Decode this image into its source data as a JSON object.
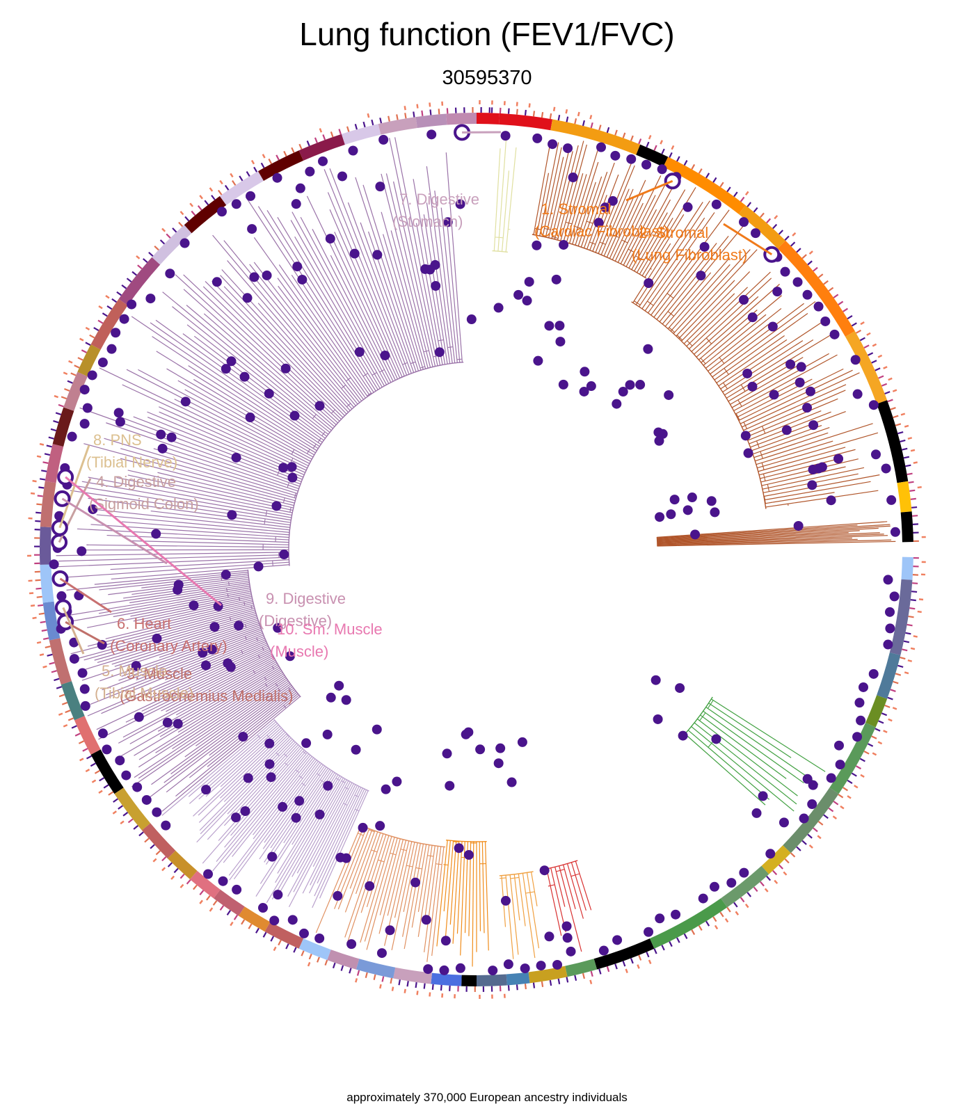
{
  "header": {
    "title": "Lung function (FEV1/FVC)",
    "subtitle": "30595370"
  },
  "footer": {
    "note": "approximately 370,000 European ancestry individuals"
  },
  "annotations": [
    {
      "id": 1,
      "line1": "1. Stromal",
      "line2": "(Cardiac Fibroblast)",
      "color": "#f07a1a"
    },
    {
      "id": 2,
      "line1": "2. Stromal",
      "line2": "(Lung Fibroblast)",
      "color": "#f07a1a"
    },
    {
      "id": 3,
      "line1": "3. Muscle",
      "line2": "(Gastrocnemius Medialis)",
      "color": "#c0706a"
    },
    {
      "id": 4,
      "line1": "4. Digestive",
      "line2": "(Sigmoid Colon)",
      "color": "#c8a0a0"
    },
    {
      "id": 5,
      "line1": "5. Muscle",
      "line2": "(Tibial Muscle)",
      "color": "#d4b090"
    },
    {
      "id": 6,
      "line1": "6. Heart",
      "line2": "(Coronary Artery)",
      "color": "#c87070"
    },
    {
      "id": 7,
      "line1": "7. Digestive",
      "line2": "(Stomach)",
      "color": "#c8a0bc"
    },
    {
      "id": 8,
      "line1": "8. PNS",
      "line2": "(Tibial Nerve)",
      "color": "#dcc090"
    },
    {
      "id": 9,
      "line1": "9. Digestive",
      "line2": "(Digestive)",
      "color": "#c890b0"
    },
    {
      "id": 10,
      "line1": "10. Sm. Muscle",
      "line2": "(Muscle)",
      "color": "#e878b0"
    }
  ],
  "colors": {
    "marker": "#4a148c",
    "clade_purple": "#9a72a8",
    "clade_lavender": "#b9a0cc",
    "clade_brown": "#b0552a",
    "clade_orange_light": "#e09060",
    "clade_orange": "#f08c1a",
    "clade_red": "#d83030",
    "clade_green": "#40a040",
    "clade_khaki": "#e0e0a0"
  }
}
